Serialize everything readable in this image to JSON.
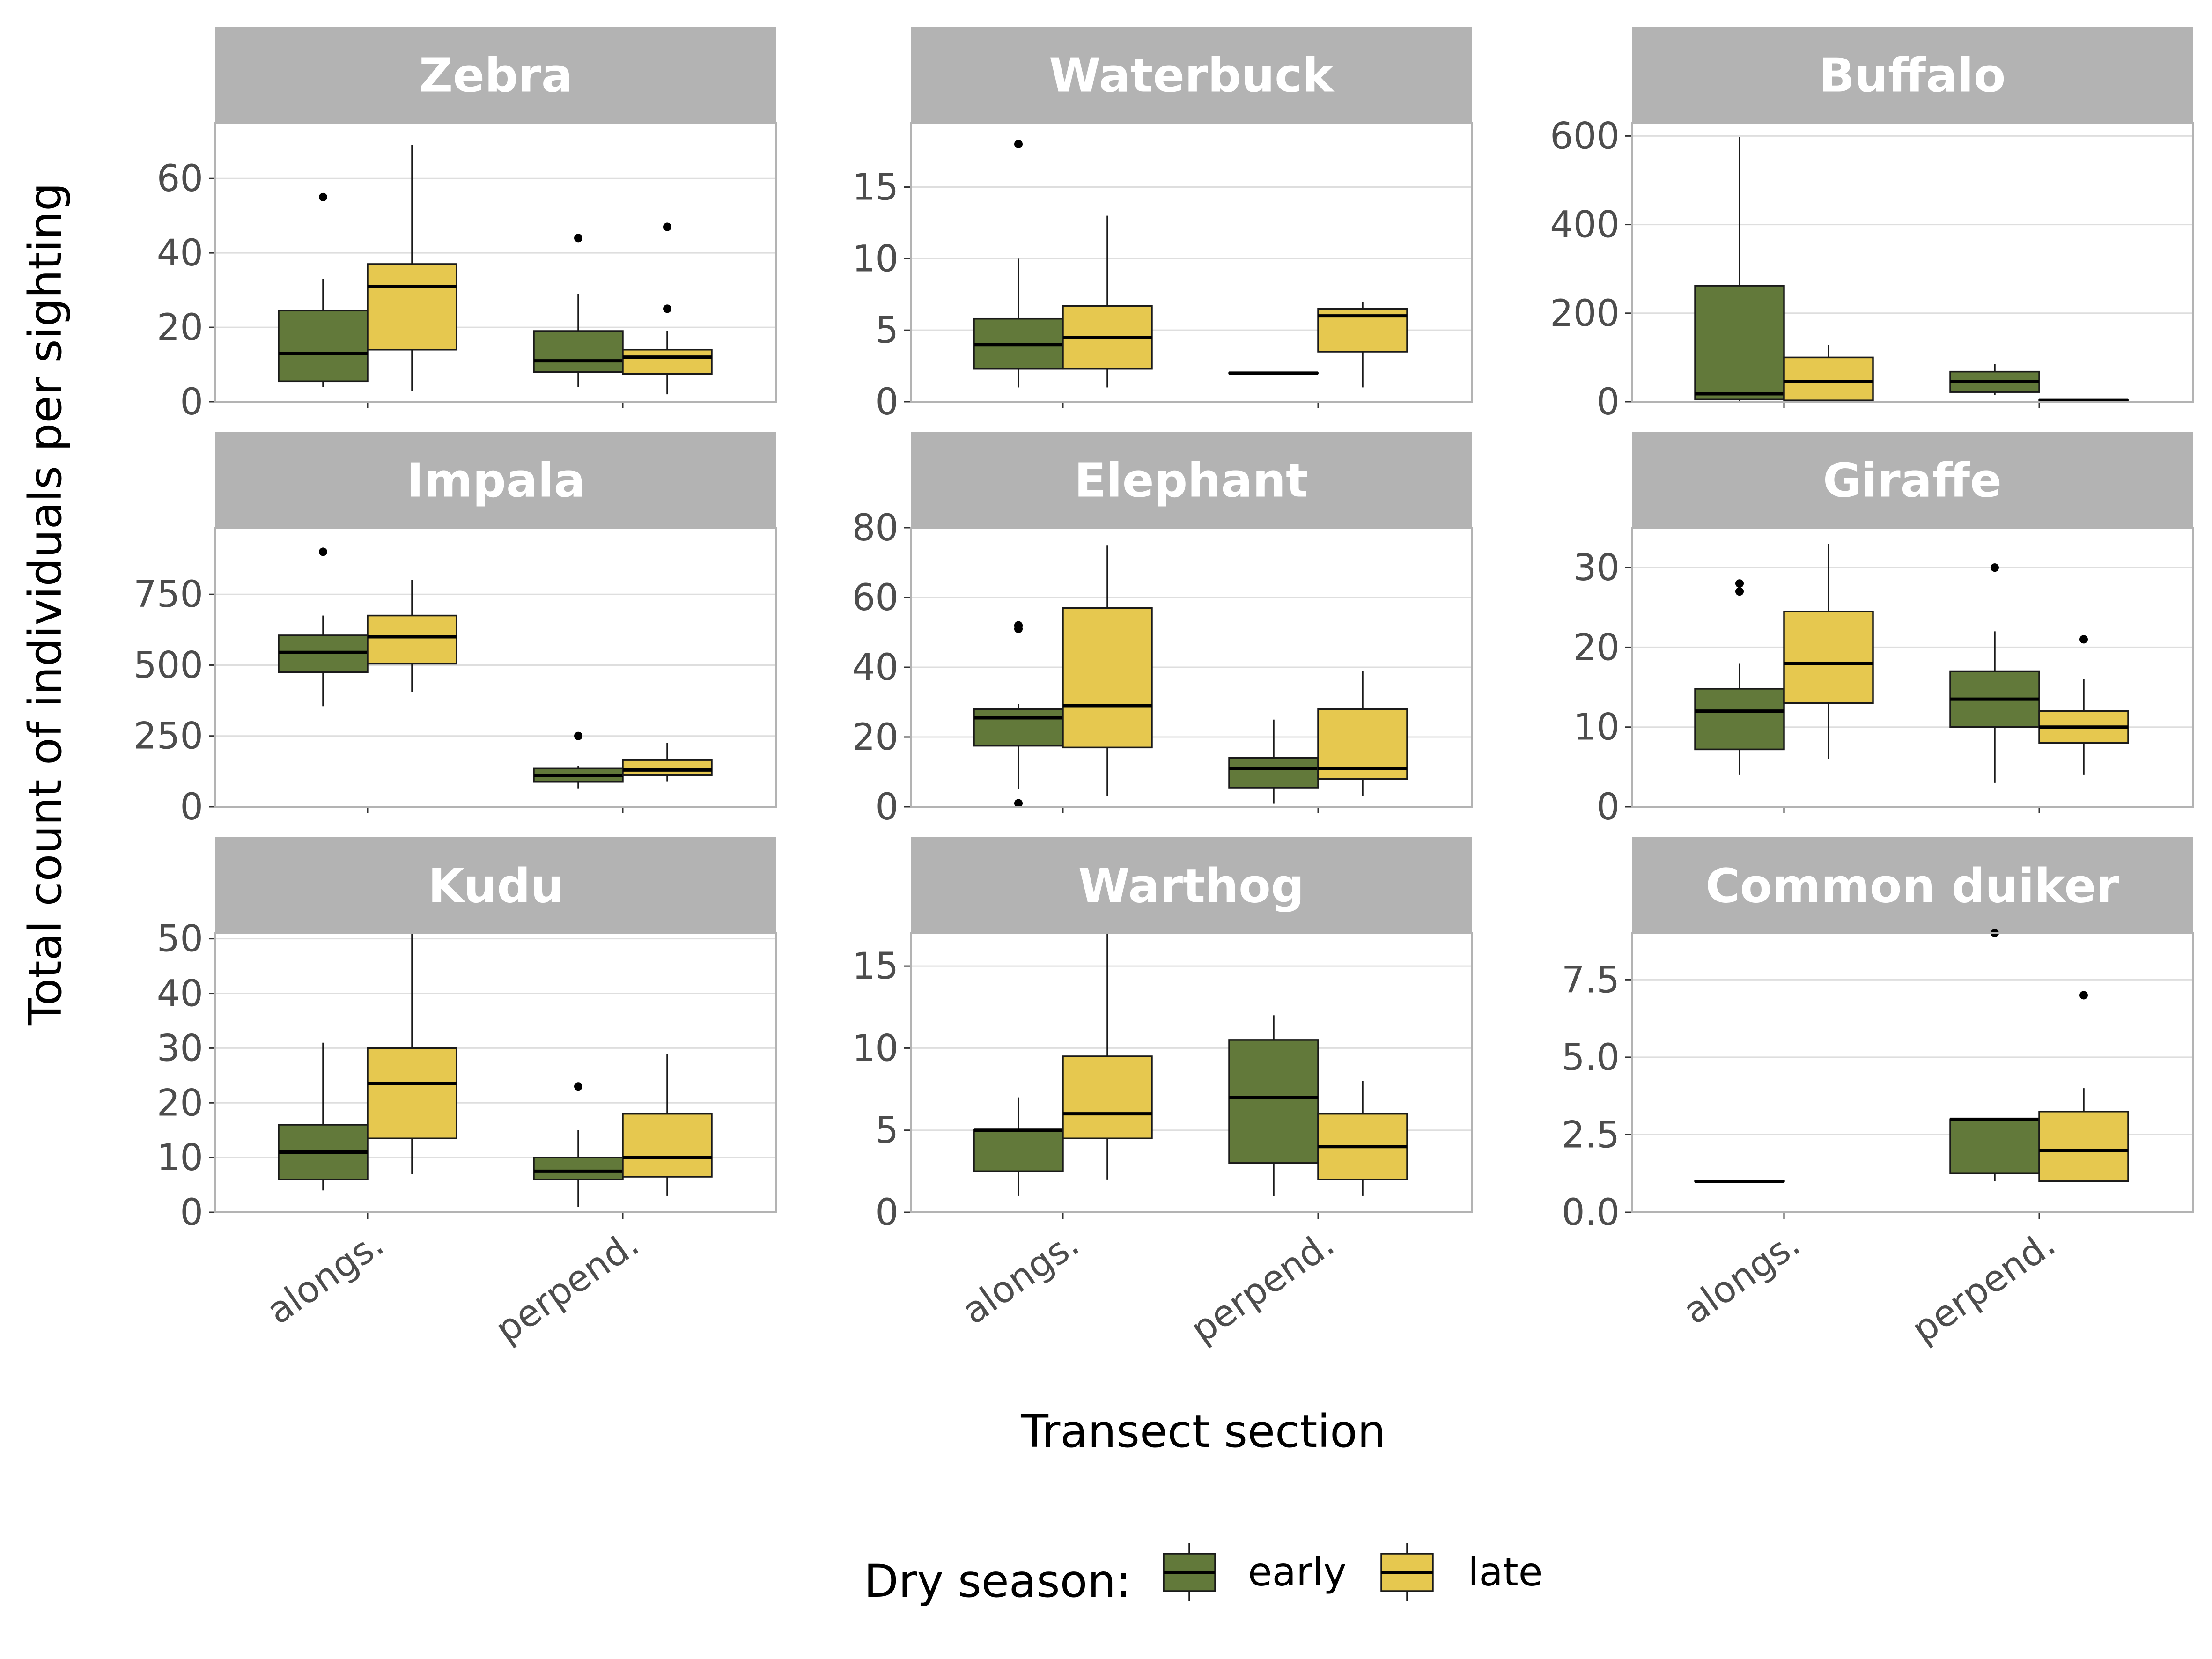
{
  "chart_data": {
    "type": "boxplot",
    "ylabel": "Total count of individuals per sighting",
    "xlabel": "Transect section",
    "categories": [
      "alongs.",
      "perpend."
    ],
    "legend": {
      "title": "Dry season:",
      "placement": "bottom",
      "entries": [
        {
          "name": "early",
          "color": "#62793a"
        },
        {
          "name": "late",
          "color": "#e6c84f"
        }
      ]
    },
    "grid": true,
    "panels": [
      {
        "title": "Zebra",
        "ylim": [
          0,
          75
        ],
        "yticks": [
          0,
          20,
          40,
          60
        ],
        "ytick_labels": [
          "0",
          "20",
          "40",
          "60"
        ],
        "boxes": [
          {
            "category": "alongs.",
            "season": "early",
            "min": 4,
            "q1": 5.5,
            "median": 13,
            "q3": 24.5,
            "max": 33,
            "outliers": [
              55
            ]
          },
          {
            "category": "alongs.",
            "season": "late",
            "min": 3,
            "q1": 14,
            "median": 31,
            "q3": 37,
            "max": 69,
            "outliers": []
          },
          {
            "category": "perpend.",
            "season": "early",
            "min": 4,
            "q1": 8,
            "median": 11,
            "q3": 19,
            "max": 29,
            "outliers": [
              44
            ]
          },
          {
            "category": "perpend.",
            "season": "late",
            "min": 2,
            "q1": 7.5,
            "median": 12,
            "q3": 14,
            "max": 19,
            "outliers": [
              25,
              47
            ]
          }
        ]
      },
      {
        "title": "Waterbuck",
        "ylim": [
          0,
          19.5
        ],
        "yticks": [
          0,
          5,
          10,
          15
        ],
        "ytick_labels": [
          "0",
          "5",
          "10",
          "15"
        ],
        "boxes": [
          {
            "category": "alongs.",
            "season": "early",
            "min": 1,
            "q1": 2.3,
            "median": 4,
            "q3": 5.8,
            "max": 10,
            "outliers": [
              18
            ]
          },
          {
            "category": "alongs.",
            "season": "late",
            "min": 1,
            "q1": 2.3,
            "median": 4.5,
            "q3": 6.7,
            "max": 13,
            "outliers": []
          },
          {
            "category": "perpend.",
            "season": "early",
            "min": 2,
            "q1": 2,
            "median": 2,
            "q3": 2,
            "max": 2,
            "outliers": []
          },
          {
            "category": "perpend.",
            "season": "late",
            "min": 1,
            "q1": 3.5,
            "median": 6,
            "q3": 6.5,
            "max": 7,
            "outliers": []
          }
        ]
      },
      {
        "title": "Buffalo",
        "ylim": [
          0,
          630
        ],
        "yticks": [
          0,
          200,
          400,
          600
        ],
        "ytick_labels": [
          "0",
          "200",
          "400",
          "600"
        ],
        "boxes": [
          {
            "category": "alongs.",
            "season": "early",
            "min": 1,
            "q1": 5,
            "median": 18,
            "q3": 262,
            "max": 598,
            "outliers": []
          },
          {
            "category": "alongs.",
            "season": "late",
            "min": 1,
            "q1": 3,
            "median": 45,
            "q3": 100,
            "max": 128,
            "outliers": []
          },
          {
            "category": "perpend.",
            "season": "early",
            "min": 15,
            "q1": 22,
            "median": 45,
            "q3": 68,
            "max": 85,
            "outliers": []
          },
          {
            "category": "perpend.",
            "season": "late",
            "min": 1,
            "q1": 2,
            "median": 3,
            "q3": 4,
            "max": 5,
            "outliers": []
          }
        ]
      },
      {
        "title": "Impala",
        "ylim": [
          0,
          985
        ],
        "yticks": [
          0,
          250,
          500,
          750
        ],
        "ytick_labels": [
          "0",
          "250",
          "500",
          "750"
        ],
        "boxes": [
          {
            "category": "alongs.",
            "season": "early",
            "min": 355,
            "q1": 475,
            "median": 545,
            "q3": 605,
            "max": 675,
            "outliers": [
              900
            ]
          },
          {
            "category": "alongs.",
            "season": "late",
            "min": 405,
            "q1": 505,
            "median": 600,
            "q3": 675,
            "max": 800,
            "outliers": []
          },
          {
            "category": "perpend.",
            "season": "early",
            "min": 65,
            "q1": 88,
            "median": 110,
            "q3": 135,
            "max": 145,
            "outliers": [
              250
            ]
          },
          {
            "category": "perpend.",
            "season": "late",
            "min": 90,
            "q1": 112,
            "median": 130,
            "q3": 165,
            "max": 225,
            "outliers": []
          }
        ]
      },
      {
        "title": "Elephant",
        "ylim": [
          0,
          80
        ],
        "yticks": [
          0,
          20,
          40,
          60,
          80
        ],
        "ytick_labels": [
          "0",
          "20",
          "40",
          "60",
          "80"
        ],
        "boxes": [
          {
            "category": "alongs.",
            "season": "early",
            "min": 5,
            "q1": 17.5,
            "median": 25.5,
            "q3": 28,
            "max": 29.5,
            "outliers": [
              1,
              51,
              52
            ]
          },
          {
            "category": "alongs.",
            "season": "late",
            "min": 3,
            "q1": 17,
            "median": 29,
            "q3": 57,
            "max": 75,
            "outliers": []
          },
          {
            "category": "perpend.",
            "season": "early",
            "min": 1,
            "q1": 5.5,
            "median": 11,
            "q3": 14,
            "max": 25,
            "outliers": []
          },
          {
            "category": "perpend.",
            "season": "late",
            "min": 3,
            "q1": 8,
            "median": 11,
            "q3": 28,
            "max": 39,
            "outliers": []
          }
        ]
      },
      {
        "title": "Giraffe",
        "ylim": [
          0,
          35
        ],
        "yticks": [
          0,
          10,
          20,
          30
        ],
        "ytick_labels": [
          "0",
          "10",
          "20",
          "30"
        ],
        "boxes": [
          {
            "category": "alongs.",
            "season": "early",
            "min": 4,
            "q1": 7.2,
            "median": 12,
            "q3": 14.8,
            "max": 18,
            "outliers": [
              27,
              28
            ]
          },
          {
            "category": "alongs.",
            "season": "late",
            "min": 6,
            "q1": 13,
            "median": 18,
            "q3": 24.5,
            "max": 33,
            "outliers": []
          },
          {
            "category": "perpend.",
            "season": "early",
            "min": 3,
            "q1": 10,
            "median": 13.5,
            "q3": 17,
            "max": 22,
            "outliers": [
              30
            ]
          },
          {
            "category": "perpend.",
            "season": "late",
            "min": 4,
            "q1": 8,
            "median": 10,
            "q3": 12,
            "max": 16,
            "outliers": [
              21
            ]
          }
        ]
      },
      {
        "title": "Kudu",
        "ylim": [
          0,
          51
        ],
        "yticks": [
          0,
          10,
          20,
          30,
          40,
          50
        ],
        "ytick_labels": [
          "0",
          "10",
          "20",
          "30",
          "40",
          "50"
        ],
        "boxes": [
          {
            "category": "alongs.",
            "season": "early",
            "min": 4,
            "q1": 6,
            "median": 11,
            "q3": 16,
            "max": 31,
            "outliers": []
          },
          {
            "category": "alongs.",
            "season": "late",
            "min": 7,
            "q1": 13.5,
            "median": 23.5,
            "q3": 30,
            "max": 51,
            "outliers": []
          },
          {
            "category": "perpend.",
            "season": "early",
            "min": 1,
            "q1": 6,
            "median": 7.5,
            "q3": 10,
            "max": 15,
            "outliers": [
              23
            ]
          },
          {
            "category": "perpend.",
            "season": "late",
            "min": 3,
            "q1": 6.5,
            "median": 10,
            "q3": 18,
            "max": 29,
            "outliers": []
          }
        ]
      },
      {
        "title": "Warthog",
        "ylim": [
          0,
          17
        ],
        "yticks": [
          0,
          5,
          10,
          15
        ],
        "ytick_labels": [
          "0",
          "5",
          "10",
          "15"
        ],
        "boxes": [
          {
            "category": "alongs.",
            "season": "early",
            "min": 1,
            "q1": 2.5,
            "median": 5,
            "q3": 5,
            "max": 7,
            "outliers": []
          },
          {
            "category": "alongs.",
            "season": "late",
            "min": 2,
            "q1": 4.5,
            "median": 6,
            "q3": 9.5,
            "max": 17,
            "outliers": []
          },
          {
            "category": "perpend.",
            "season": "early",
            "min": 1,
            "q1": 3,
            "median": 7,
            "q3": 10.5,
            "max": 12,
            "outliers": []
          },
          {
            "category": "perpend.",
            "season": "late",
            "min": 1,
            "q1": 2,
            "median": 4,
            "q3": 6,
            "max": 8,
            "outliers": []
          }
        ]
      },
      {
        "title": "Common duiker",
        "ylim": [
          0,
          9
        ],
        "yticks": [
          0,
          2.5,
          5,
          7.5
        ],
        "ytick_labels": [
          "0.0",
          "2.5",
          "5.0",
          "7.5"
        ],
        "boxes": [
          {
            "category": "alongs.",
            "season": "early",
            "min": 1,
            "q1": 1,
            "median": 1,
            "q3": 1,
            "max": 1,
            "outliers": []
          },
          {
            "category": "perpend.",
            "season": "early",
            "min": 1,
            "q1": 1.25,
            "median": 3,
            "q3": 3,
            "max": 3,
            "outliers": [
              9
            ]
          },
          {
            "category": "perpend.",
            "season": "late",
            "min": 1,
            "q1": 1,
            "median": 2,
            "q3": 3.25,
            "max": 4,
            "outliers": [
              7
            ]
          }
        ]
      }
    ]
  }
}
